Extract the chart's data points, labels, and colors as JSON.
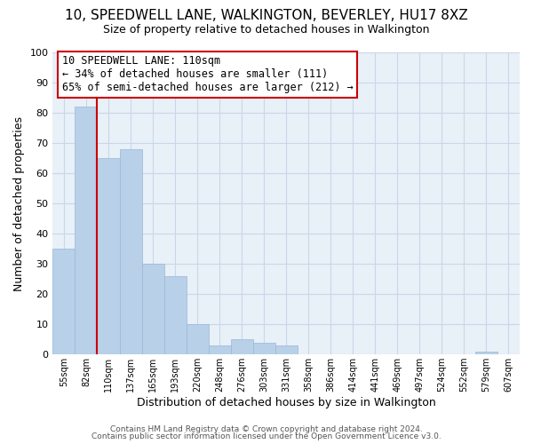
{
  "title": "10, SPEEDWELL LANE, WALKINGTON, BEVERLEY, HU17 8XZ",
  "subtitle": "Size of property relative to detached houses in Walkington",
  "xlabel": "Distribution of detached houses by size in Walkington",
  "ylabel": "Number of detached properties",
  "bin_labels": [
    "55sqm",
    "82sqm",
    "110sqm",
    "137sqm",
    "165sqm",
    "193sqm",
    "220sqm",
    "248sqm",
    "276sqm",
    "303sqm",
    "331sqm",
    "358sqm",
    "386sqm",
    "414sqm",
    "441sqm",
    "469sqm",
    "497sqm",
    "524sqm",
    "552sqm",
    "579sqm",
    "607sqm"
  ],
  "bar_heights": [
    35,
    82,
    65,
    68,
    30,
    26,
    10,
    3,
    5,
    4,
    3,
    0,
    0,
    0,
    0,
    0,
    0,
    0,
    0,
    1,
    0
  ],
  "bar_color": "#b8d0e8",
  "bar_edge_color": "#9ab8d8",
  "highlight_line_color": "#cc0000",
  "highlight_index": 2,
  "annotation_text": "10 SPEEDWELL LANE: 110sqm\n← 34% of detached houses are smaller (111)\n65% of semi-detached houses are larger (212) →",
  "annotation_box_edge": "#cc0000",
  "annotation_box_face": "#ffffff",
  "ylim": [
    0,
    100
  ],
  "yticks": [
    0,
    10,
    20,
    30,
    40,
    50,
    60,
    70,
    80,
    90,
    100
  ],
  "footer1": "Contains HM Land Registry data © Crown copyright and database right 2024.",
  "footer2": "Contains public sector information licensed under the Open Government Licence v3.0.",
  "bg_color": "#ffffff",
  "plot_bg_color": "#e8f0f8",
  "grid_color": "#c8d8e8"
}
